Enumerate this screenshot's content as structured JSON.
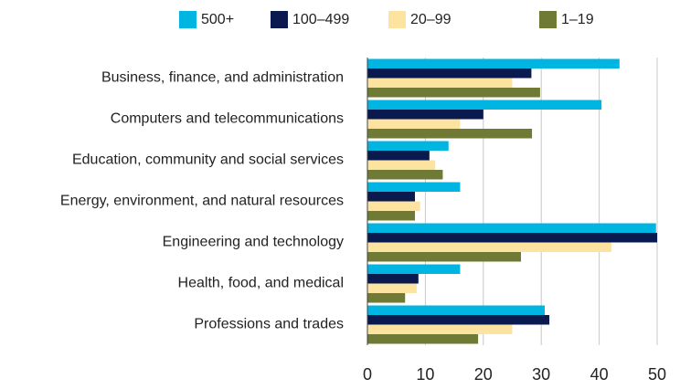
{
  "chart_data": {
    "type": "bar",
    "orientation": "horizontal",
    "categories": [
      "Business, finance, and administration",
      "Computers and telecommunications",
      "Education, community and social services",
      "Energy, environment, and natural resources",
      "Engineering and technology",
      "Health, food, and medical",
      "Professions and trades"
    ],
    "series": [
      {
        "name": "500+",
        "color": "#00b5e2",
        "values": [
          43.5,
          40.4,
          14,
          16,
          49.8,
          16,
          30.6
        ]
      },
      {
        "name": "100–499",
        "color": "#0a1a4f",
        "values": [
          28.3,
          20,
          10.7,
          8.2,
          50,
          8.8,
          31.4
        ]
      },
      {
        "name": "20–99",
        "color": "#fde3a0",
        "values": [
          25,
          16,
          11.7,
          9.1,
          42.1,
          8.5,
          25
        ]
      },
      {
        "name": "1–19",
        "color": "#6f7a35",
        "values": [
          29.8,
          28.4,
          13,
          8.2,
          26.5,
          6.5,
          19.1
        ]
      }
    ],
    "xlim": [
      0,
      50
    ],
    "xticks": [
      0,
      10,
      20,
      30,
      40,
      50
    ],
    "grid": true,
    "legend": "top"
  }
}
